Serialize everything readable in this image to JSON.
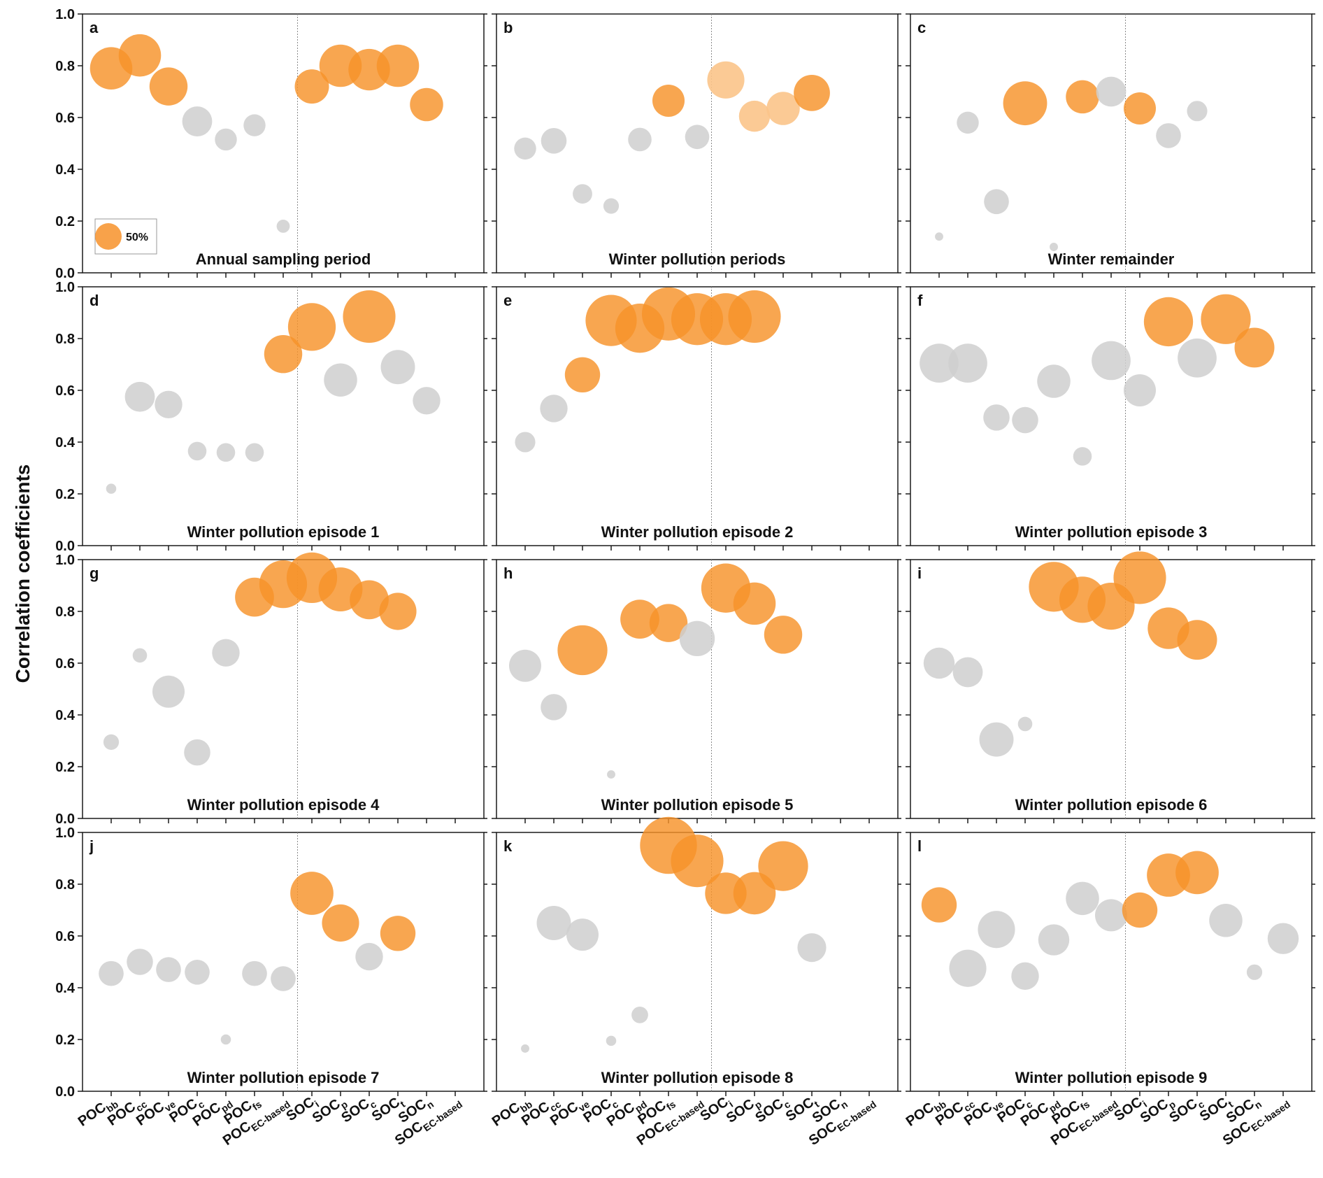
{
  "figure": {
    "ylabel": "Correlation coefficients",
    "yticks": [
      "0.0",
      "0.2",
      "0.4",
      "0.6",
      "0.8",
      "1.0"
    ],
    "categories": [
      {
        "main": "POC",
        "sub": "bb"
      },
      {
        "main": "POC",
        "sub": "cc"
      },
      {
        "main": "POC",
        "sub": "ve"
      },
      {
        "main": "POC",
        "sub": "c"
      },
      {
        "main": "POC",
        "sub": "pd"
      },
      {
        "main": "POC",
        "sub": "fs"
      },
      {
        "main": "POC",
        "sub": "EC-based"
      },
      {
        "main": "SOC",
        "sub": "i"
      },
      {
        "main": "SOC",
        "sub": "p"
      },
      {
        "main": "SOC",
        "sub": "c"
      },
      {
        "main": "SOC",
        "sub": "t"
      },
      {
        "main": "SOC",
        "sub": "n"
      },
      {
        "main": "SOC",
        "sub": "EC-based"
      }
    ],
    "legend": {
      "label": "50%"
    },
    "colors": {
      "significant": "#f7922a",
      "significant_light": "#fbc48a",
      "not_significant": "#cfcfcf"
    }
  },
  "chart_data": [
    {
      "type": "scatter",
      "letter": "a",
      "title": "Annual sampling period",
      "ylim": [
        0,
        1.0
      ],
      "values": [
        0.79,
        0.84,
        0.72,
        0.585,
        0.515,
        0.57,
        0.18,
        0.72,
        0.8,
        0.785,
        0.8,
        0.65,
        null
      ],
      "sizes": [
        0.52,
        0.52,
        0.42,
        0.26,
        0.14,
        0.14,
        0.05,
        0.34,
        0.52,
        0.5,
        0.52,
        0.32,
        null
      ],
      "significant": [
        1,
        1,
        1,
        0,
        0,
        0,
        0,
        1,
        1,
        1,
        1,
        1,
        0
      ]
    },
    {
      "type": "scatter",
      "letter": "b",
      "title": "Winter pollution periods",
      "ylim": [
        0,
        1.0
      ],
      "values": [
        0.48,
        0.51,
        0.305,
        0.258,
        0.515,
        0.665,
        0.525,
        0.745,
        0.605,
        0.635,
        0.695,
        null,
        null
      ],
      "sizes": [
        0.14,
        0.19,
        0.11,
        0.07,
        0.16,
        0.3,
        0.17,
        0.4,
        0.28,
        0.32,
        0.38,
        null,
        null
      ],
      "significant": [
        0,
        0,
        0,
        0,
        0,
        1,
        0,
        2,
        2,
        2,
        1,
        0,
        0
      ]
    },
    {
      "type": "scatter",
      "letter": "c",
      "title": "Winter remainder",
      "ylim": [
        0,
        1.0
      ],
      "values": [
        0.14,
        0.58,
        0.275,
        0.655,
        0.1,
        0.68,
        0.7,
        0.635,
        0.53,
        0.625,
        null,
        null,
        null
      ],
      "sizes": [
        0.02,
        0.14,
        0.18,
        0.56,
        0.02,
        0.32,
        0.26,
        0.3,
        0.18,
        0.12,
        null,
        null,
        null
      ],
      "significant": [
        0,
        0,
        0,
        1,
        0,
        1,
        0,
        1,
        0,
        0,
        0,
        0,
        0
      ]
    },
    {
      "type": "scatter",
      "letter": "d",
      "title": "Winter pollution episode 1",
      "ylim": [
        0,
        1.0
      ],
      "values": [
        0.22,
        0.575,
        0.545,
        0.365,
        0.36,
        0.36,
        0.74,
        0.845,
        0.64,
        0.885,
        0.69,
        0.56,
        null
      ],
      "sizes": [
        0.03,
        0.26,
        0.22,
        0.1,
        0.1,
        0.1,
        0.42,
        0.66,
        0.32,
        0.8,
        0.34,
        0.22,
        null
      ],
      "significant": [
        0,
        0,
        0,
        0,
        0,
        0,
        1,
        1,
        0,
        1,
        0,
        0,
        0
      ]
    },
    {
      "type": "scatter",
      "letter": "e",
      "title": "Winter pollution episode 2",
      "ylim": [
        0,
        1.0
      ],
      "values": [
        0.4,
        0.53,
        0.66,
        0.87,
        0.84,
        0.895,
        0.875,
        0.875,
        0.885,
        null,
        null,
        null,
        null
      ],
      "sizes": [
        0.12,
        0.22,
        0.36,
        0.76,
        0.7,
        0.82,
        0.78,
        0.78,
        0.8,
        null,
        null,
        null,
        null
      ],
      "significant": [
        0,
        0,
        1,
        1,
        1,
        1,
        1,
        1,
        1,
        0,
        0,
        0,
        0
      ]
    },
    {
      "type": "scatter",
      "letter": "f",
      "title": "Winter pollution episode 3",
      "ylim": [
        0,
        1.0
      ],
      "values": [
        0.705,
        0.705,
        0.495,
        0.485,
        0.635,
        0.345,
        0.715,
        0.6,
        0.865,
        0.725,
        0.875,
        0.765,
        null
      ],
      "sizes": [
        0.44,
        0.44,
        0.2,
        0.2,
        0.32,
        0.1,
        0.44,
        0.3,
        0.7,
        0.44,
        0.72,
        0.46,
        null
      ],
      "significant": [
        0,
        0,
        0,
        0,
        0,
        0,
        0,
        0,
        1,
        0,
        1,
        1,
        0
      ]
    },
    {
      "type": "scatter",
      "letter": "g",
      "title": "Winter pollution episode 4",
      "ylim": [
        0,
        1.0
      ],
      "values": [
        0.295,
        0.63,
        0.49,
        0.255,
        0.64,
        0.855,
        0.905,
        0.93,
        0.885,
        0.845,
        0.8,
        null,
        null
      ],
      "sizes": [
        0.07,
        0.06,
        0.3,
        0.2,
        0.22,
        0.44,
        0.66,
        0.74,
        0.56,
        0.44,
        0.4,
        null,
        null
      ],
      "significant": [
        0,
        0,
        0,
        0,
        0,
        1,
        1,
        1,
        1,
        1,
        1,
        0,
        0
      ]
    },
    {
      "type": "scatter",
      "letter": "h",
      "title": "Winter pollution episode 5",
      "ylim": [
        0,
        1.0
      ],
      "values": [
        0.59,
        0.43,
        0.65,
        0.17,
        0.77,
        0.755,
        0.695,
        0.89,
        0.83,
        0.71,
        null,
        null,
        null
      ],
      "sizes": [
        0.3,
        0.2,
        0.72,
        0.02,
        0.44,
        0.42,
        0.36,
        0.7,
        0.52,
        0.42,
        null,
        null,
        null
      ],
      "significant": [
        0,
        0,
        1,
        0,
        1,
        1,
        0,
        1,
        1,
        1,
        0,
        0,
        0
      ]
    },
    {
      "type": "scatter",
      "letter": "i",
      "title": "Winter pollution episode 6",
      "ylim": [
        0,
        1.0
      ],
      "values": [
        0.6,
        0.565,
        0.305,
        0.365,
        0.895,
        0.845,
        0.82,
        0.93,
        0.735,
        0.69,
        null,
        null,
        null
      ],
      "sizes": [
        0.28,
        0.26,
        0.34,
        0.06,
        0.72,
        0.62,
        0.64,
        0.8,
        0.5,
        0.46,
        null,
        null,
        null
      ],
      "significant": [
        0,
        0,
        0,
        0,
        1,
        1,
        1,
        1,
        1,
        1,
        0,
        0,
        0
      ]
    },
    {
      "type": "scatter",
      "letter": "j",
      "title": "Winter pollution episode 7",
      "ylim": [
        0,
        1.0
      ],
      "values": [
        0.455,
        0.5,
        0.47,
        0.46,
        0.2,
        0.455,
        0.435,
        0.765,
        0.65,
        0.52,
        0.61,
        null,
        null
      ],
      "sizes": [
        0.18,
        0.2,
        0.18,
        0.18,
        0.03,
        0.18,
        0.18,
        0.54,
        0.4,
        0.22,
        0.36,
        null,
        null
      ],
      "significant": [
        0,
        0,
        0,
        0,
        0,
        0,
        0,
        1,
        1,
        0,
        1,
        0,
        0
      ]
    },
    {
      "type": "scatter",
      "letter": "k",
      "title": "Winter pollution episode 8",
      "ylim": [
        0,
        1.0
      ],
      "values": [
        0.165,
        0.65,
        0.605,
        0.195,
        0.295,
        0.95,
        0.89,
        0.765,
        0.765,
        0.87,
        0.555,
        null,
        null
      ],
      "sizes": [
        0.02,
        0.34,
        0.3,
        0.03,
        0.08,
        0.94,
        0.8,
        0.5,
        0.52,
        0.72,
        0.24,
        null,
        null
      ],
      "significant": [
        0,
        0,
        0,
        0,
        0,
        1,
        1,
        1,
        1,
        1,
        0,
        0,
        0
      ]
    },
    {
      "type": "scatter",
      "letter": "l",
      "title": "Winter pollution episode 9",
      "ylim": [
        0,
        1.0
      ],
      "values": [
        0.72,
        0.475,
        0.625,
        0.445,
        0.585,
        0.745,
        0.68,
        0.7,
        0.835,
        0.845,
        0.66,
        0.46,
        0.59
      ],
      "sizes": [
        0.36,
        0.4,
        0.4,
        0.22,
        0.28,
        0.32,
        0.3,
        0.36,
        0.54,
        0.54,
        0.32,
        0.07,
        0.28
      ],
      "significant": [
        1,
        0,
        0,
        0,
        0,
        0,
        0,
        1,
        1,
        1,
        0,
        0,
        0
      ]
    }
  ]
}
